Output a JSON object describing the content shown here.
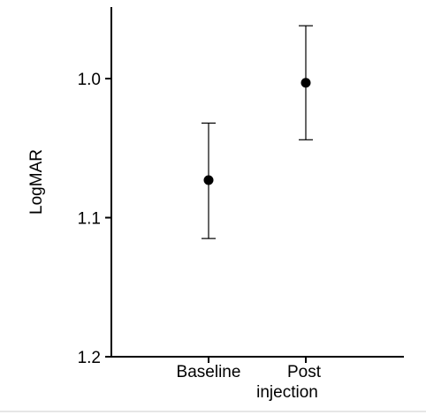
{
  "chart_data": {
    "type": "scatter",
    "title": "",
    "xlabel": "",
    "ylabel": "LogMAR",
    "y_inverted": true,
    "ylim": [
      0.95,
      1.2
    ],
    "y_ticks": [
      1.0,
      1.1,
      1.2
    ],
    "y_tick_labels": [
      "1.0",
      "1.1",
      "1.2"
    ],
    "categories": [
      {
        "name": "Baseline",
        "lines": [
          "Baseline"
        ]
      },
      {
        "name": "Post injection",
        "lines": [
          "Post",
          "injection"
        ]
      }
    ],
    "series": [
      {
        "values": [
          1.073,
          1.003
        ],
        "err_low": [
          1.032,
          0.962
        ],
        "err_high": [
          1.115,
          1.044
        ]
      }
    ],
    "grid": false,
    "legend": "none"
  }
}
